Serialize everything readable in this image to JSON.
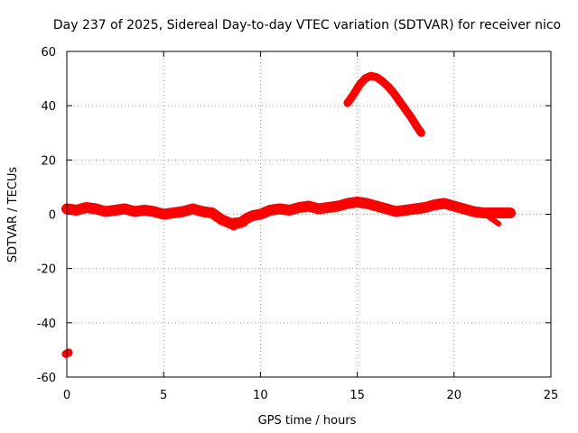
{
  "chart_data": {
    "type": "scatter",
    "title": "Day 237 of 2025, Sidereal Day-to-day VTEC variation (SDTVAR) for receiver nico",
    "xlabel": "GPS time / hours",
    "ylabel": "SDTVAR / TECUs",
    "xlim": [
      0,
      25
    ],
    "ylim": [
      -60,
      60
    ],
    "xticks": [
      0,
      5,
      10,
      15,
      20,
      25
    ],
    "yticks": [
      -60,
      -40,
      -20,
      0,
      20,
      40,
      60
    ],
    "grid": true,
    "color": "#ff0000",
    "series": [
      {
        "name": "main-band",
        "band_width": 4,
        "x": [
          0.0,
          0.5,
          1.0,
          1.5,
          2.0,
          2.5,
          3.0,
          3.5,
          4.0,
          4.5,
          5.0,
          5.5,
          6.0,
          6.5,
          7.0,
          7.5,
          8.0,
          8.5,
          9.0,
          9.3,
          9.6,
          10.0,
          10.5,
          11.0,
          11.5,
          12.0,
          12.5,
          13.0,
          13.5,
          14.0,
          14.5,
          15.0,
          15.5,
          16.0,
          16.5,
          17.0,
          17.5,
          18.0,
          18.5,
          19.0,
          19.5,
          20.0,
          20.5,
          21.0,
          21.5,
          22.0,
          22.5,
          22.9
        ],
        "y": [
          2.0,
          1.5,
          2.5,
          2.0,
          1.0,
          1.5,
          2.0,
          1.0,
          1.5,
          1.0,
          0.0,
          0.5,
          1.0,
          2.0,
          1.0,
          0.5,
          -2.0,
          -3.5,
          -3.0,
          -1.5,
          -0.5,
          0.0,
          1.5,
          2.0,
          1.5,
          2.5,
          3.0,
          2.0,
          2.5,
          3.0,
          4.0,
          4.5,
          4.0,
          3.0,
          2.0,
          1.0,
          1.5,
          2.0,
          2.5,
          3.5,
          4.0,
          3.0,
          2.0,
          1.0,
          0.5,
          0.5,
          0.5,
          0.5
        ]
      },
      {
        "name": "dip-branch",
        "band_width": 2,
        "x": [
          7.8,
          8.2,
          8.6,
          8.9,
          9.2
        ],
        "y": [
          -1.5,
          -3.0,
          -5.0,
          -4.0,
          -3.5
        ]
      },
      {
        "name": "tail-branch",
        "band_width": 2,
        "x": [
          21.5,
          21.8,
          22.1,
          22.3
        ],
        "y": [
          0.5,
          -1.0,
          -2.5,
          -3.5
        ]
      },
      {
        "name": "arc",
        "band_width": 3,
        "x": [
          14.5,
          14.8,
          15.1,
          15.4,
          15.7,
          16.0,
          16.3,
          16.6,
          16.9,
          17.2,
          17.5,
          17.8,
          18.1,
          18.3
        ],
        "y": [
          41,
          44,
          47.5,
          50,
          51,
          50.5,
          49,
          47,
          44.5,
          41.5,
          38.5,
          35.5,
          32,
          30
        ]
      },
      {
        "name": "outlier",
        "band_width": 3,
        "x": [
          -0.05,
          0.1
        ],
        "y": [
          -51.5,
          -51.0
        ]
      }
    ]
  }
}
